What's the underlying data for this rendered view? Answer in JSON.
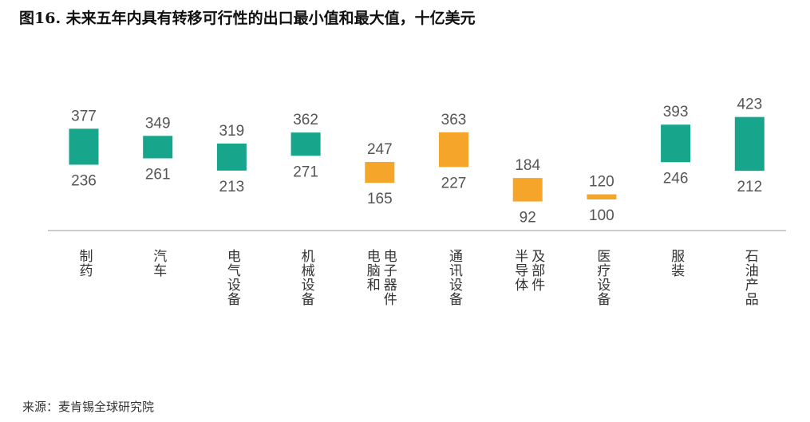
{
  "title": "图16. 未来五年内具有转移可行性的出口最小值和最大值，十亿美元",
  "source": "来源：麦肯锡全球研究院",
  "chart_data": {
    "type": "floating-bar",
    "title": "图16. 未来五年内具有转移可行性的出口最小值和最大值，十亿美元",
    "unit": "十亿美元",
    "categories": [
      {
        "label": [
          "制药"
        ],
        "min": 236,
        "max": 377,
        "color": "#17a58c"
      },
      {
        "label": [
          "汽车"
        ],
        "min": 261,
        "max": 349,
        "color": "#17a58c"
      },
      {
        "label": [
          "电气设备"
        ],
        "min": 213,
        "max": 319,
        "color": "#17a58c"
      },
      {
        "label": [
          "机械设备"
        ],
        "min": 271,
        "max": 362,
        "color": "#17a58c"
      },
      {
        "label": [
          "电脑和",
          "电子器件"
        ],
        "min": 165,
        "max": 247,
        "color": "#f5a52a"
      },
      {
        "label": [
          "通讯设备"
        ],
        "min": 227,
        "max": 363,
        "color": "#f5a52a"
      },
      {
        "label": [
          "半导体",
          "及部件"
        ],
        "min": 92,
        "max": 184,
        "color": "#f5a52a"
      },
      {
        "label": [
          "医疗设备"
        ],
        "min": 100,
        "max": 120,
        "color": "#f5a52a"
      },
      {
        "label": [
          "服装"
        ],
        "min": 246,
        "max": 393,
        "color": "#17a58c"
      },
      {
        "label": [
          "石油产品"
        ],
        "min": 212,
        "max": 423,
        "color": "#17a58c"
      }
    ],
    "grid": false,
    "legend": "none"
  }
}
